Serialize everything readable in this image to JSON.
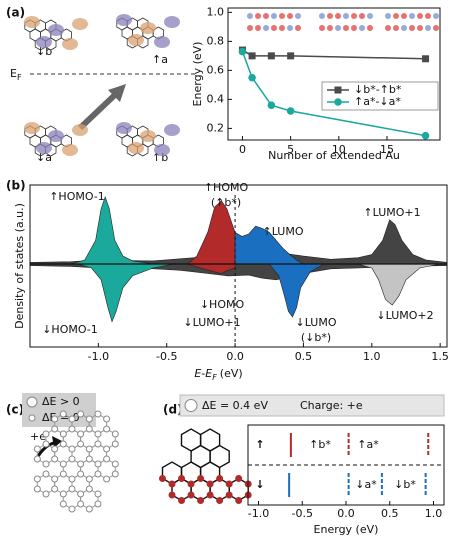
{
  "figure": {
    "panels": [
      "(a)",
      "(b)",
      "(c)",
      "(d)"
    ],
    "orbitals": {
      "top_left": "↓b",
      "top_right": "↑a",
      "bottom_left": "↓a",
      "bottom_right": "↑b",
      "fermi": [
        "E",
        "F"
      ]
    },
    "flake": {
      "legend": [
        "ΔE > 0",
        "ΔE = 0"
      ],
      "charge": "+e"
    },
    "levels_header": [
      "ΔE = 0.4 eV",
      "Charge: +e"
    ]
  },
  "chart_data": [
    {
      "type": "line",
      "xlabel": "Number of extended Au",
      "ylabel": "Energy (eV)",
      "xlim": [
        -1.5,
        20.5
      ],
      "xticks": [
        0,
        5,
        10,
        15
      ],
      "ylim": [
        0.12,
        1.03
      ],
      "yticks": [
        0.2,
        0.4,
        0.6,
        0.8,
        {
          "value": 1.0,
          "label": "1.0"
        }
      ],
      "legend": "right",
      "series": [
        {
          "name": "↓b*-↑b*",
          "color": "#4a4a4a",
          "marker": "square",
          "x": [
            0,
            1,
            3,
            5,
            19
          ],
          "values": [
            0.74,
            0.7,
            0.7,
            0.7,
            0.68
          ]
        },
        {
          "name": "↑a*-↓a*",
          "color": "#1aa99a",
          "marker": "circle",
          "x": [
            0,
            1,
            3,
            5,
            19
          ],
          "values": [
            0.73,
            0.55,
            0.36,
            0.32,
            0.15
          ]
        }
      ]
    },
    {
      "type": "area",
      "ylabel": "Density of states (a.u.)",
      "xlabel": [
        "E-E",
        "F",
        "(eV)"
      ],
      "xlim": [
        -1.5,
        1.55
      ],
      "xticks": [
        {
          "value": -1.0,
          "label": "-1.0"
        },
        -0.5,
        {
          "value": 0.0,
          "label": "0.0"
        },
        0.5,
        {
          "value": 1.0,
          "label": "1.0"
        },
        1.5
      ],
      "ylim": [
        -1.05,
        1.0
      ],
      "vline": 0,
      "series": [
        {
          "name": "↑LUMO+1",
          "color": "#444444",
          "x": [
            -1.5,
            -1.2,
            -1.0,
            -0.6,
            -0.3,
            -0.1,
            0.1,
            0.3,
            0.5,
            0.7,
            0.9,
            1.0,
            1.08,
            1.13,
            1.17,
            1.22,
            1.3,
            1.4,
            1.55
          ],
          "values": [
            0.02,
            0.03,
            0.05,
            0.04,
            0.08,
            0.15,
            0.2,
            0.15,
            0.1,
            0.06,
            0.08,
            0.12,
            0.3,
            0.56,
            0.5,
            0.3,
            0.12,
            0.05,
            0.02
          ]
        },
        {
          "name": "↓LUMO+1",
          "color": "#444444",
          "x": [
            -1.5,
            -1.2,
            -1.0,
            -0.7,
            -0.4,
            -0.2,
            -0.05,
            0.1,
            0.2,
            0.3,
            0.5,
            0.7,
            0.9,
            1.2,
            1.55
          ],
          "values": [
            -0.02,
            -0.03,
            -0.05,
            -0.05,
            -0.08,
            -0.12,
            -0.15,
            -0.14,
            -0.18,
            -0.2,
            -0.12,
            -0.06,
            -0.05,
            -0.03,
            -0.02
          ]
        },
        {
          "name": "↑HOMO-1",
          "color": "#1aa99a",
          "x": [
            -1.2,
            -1.1,
            -1.02,
            -0.98,
            -0.95,
            -0.92,
            -0.88,
            -0.82,
            -0.75,
            -0.6
          ],
          "values": [
            0,
            0.05,
            0.3,
            0.7,
            0.85,
            0.7,
            0.3,
            0.1,
            0.04,
            0
          ]
        },
        {
          "name": "↑HOMO",
          "note": "(↑b*)",
          "color": "#b22a2a",
          "x": [
            -0.35,
            -0.28,
            -0.2,
            -0.15,
            -0.1,
            -0.06,
            -0.02,
            0.0
          ],
          "values": [
            0,
            0.1,
            0.4,
            0.72,
            0.8,
            0.7,
            0.5,
            0.4
          ]
        },
        {
          "name": "↑LUMO",
          "color": "#1a6fc0",
          "x": [
            0.0,
            0.05,
            0.1,
            0.15,
            0.2,
            0.25,
            0.3,
            0.35,
            0.4,
            0.45,
            0.5
          ],
          "values": [
            0.4,
            0.35,
            0.38,
            0.48,
            0.45,
            0.4,
            0.3,
            0.2,
            0.12,
            0.05,
            0
          ]
        },
        {
          "name": "↓HOMO-1",
          "color": "#1aa99a",
          "x": [
            -1.15,
            -1.05,
            -0.98,
            -0.93,
            -0.9,
            -0.87,
            -0.82,
            -0.75,
            -0.6,
            -0.45
          ],
          "values": [
            0,
            -0.05,
            -0.2,
            -0.55,
            -0.73,
            -0.6,
            -0.3,
            -0.15,
            -0.05,
            0
          ]
        },
        {
          "name": "↓HOMO",
          "color": "#b22a2a",
          "x": [
            -0.35,
            -0.25,
            -0.15,
            -0.1,
            -0.05,
            0.0
          ],
          "values": [
            0,
            -0.05,
            -0.1,
            -0.12,
            -0.08,
            -0.05
          ]
        },
        {
          "name": "↓LUMO",
          "note": "(↓b*)",
          "color": "#1a6fc0",
          "x": [
            0.25,
            0.32,
            0.36,
            0.39,
            0.42,
            0.45,
            0.48,
            0.55,
            0.65
          ],
          "values": [
            0,
            -0.15,
            -0.4,
            -0.6,
            -0.67,
            -0.55,
            -0.3,
            -0.1,
            0
          ]
        },
        {
          "name": "↓LUMO+2",
          "color": "#c4c4c4",
          "x": [
            0.9,
            1.0,
            1.05,
            1.1,
            1.15,
            1.2,
            1.25,
            1.35,
            1.5
          ],
          "values": [
            0,
            -0.05,
            -0.2,
            -0.45,
            -0.52,
            -0.4,
            -0.2,
            -0.05,
            0
          ]
        }
      ]
    },
    {
      "type": "levels",
      "xlabel": "Energy (eV)",
      "xlim": [
        -1.12,
        1.12
      ],
      "xticks": [
        {
          "value": -1.0,
          "label": "-1.0"
        },
        -0.5,
        {
          "value": 0.0,
          "label": "0.0"
        },
        0.5,
        {
          "value": 1.0,
          "label": "1.0"
        }
      ],
      "annotations": [
        "↑b*",
        "↑a*",
        "↓a*",
        "↓b*"
      ],
      "series": [
        {
          "name": "↑",
          "color": "#b22a2a",
          "values": [
            -0.63,
            0.03,
            0.94
          ],
          "styles": [
            "solid",
            "dashed",
            "dashed"
          ]
        },
        {
          "name": "↓",
          "color": "#1a6fc0",
          "values": [
            -0.65,
            0.03,
            0.41,
            0.91
          ],
          "styles": [
            "solid",
            "dashed",
            "dashed",
            "dashed"
          ]
        }
      ]
    }
  ]
}
